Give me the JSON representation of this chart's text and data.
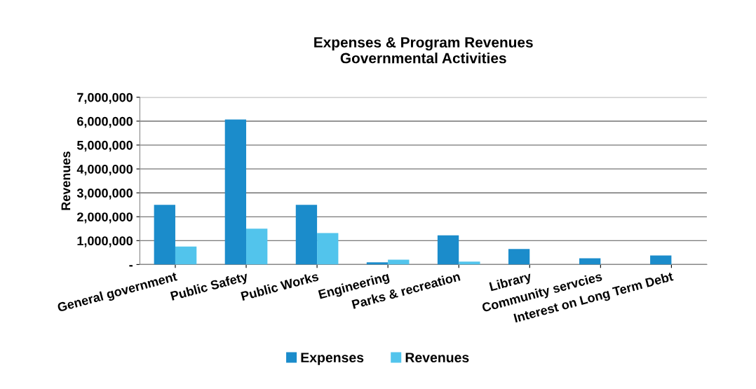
{
  "chart_data": {
    "type": "bar",
    "title": "Expenses & Program Revenues\nGovernmental Activities",
    "ylabel": "Revenues",
    "categories": [
      "General government",
      "Public Safety",
      "Public Works",
      "Engineering",
      "Parks & recreation",
      "Library",
      "Community servcies",
      "Interest on Long Term Debt"
    ],
    "series": [
      {
        "name": "Expenses",
        "color": "#1b8ccb",
        "values": [
          2500000,
          6070000,
          2500000,
          90000,
          1220000,
          650000,
          260000,
          380000
        ]
      },
      {
        "name": "Revenues",
        "color": "#52c4ec",
        "values": [
          750000,
          1500000,
          1320000,
          200000,
          120000,
          null,
          0,
          0
        ]
      }
    ],
    "ylim": [
      0,
      7000000
    ],
    "yticks": [
      {
        "value": 0,
        "label": "-"
      },
      {
        "value": 1000000,
        "label": "1,000,000"
      },
      {
        "value": 2000000,
        "label": "2,000,000"
      },
      {
        "value": 3000000,
        "label": "3,000,000"
      },
      {
        "value": 4000000,
        "label": "4,000,000"
      },
      {
        "value": 5000000,
        "label": "5,000,000"
      },
      {
        "value": 6000000,
        "label": "6,000,000"
      },
      {
        "value": 7000000,
        "label": "7,000,000"
      }
    ],
    "grid": "y",
    "legend": "bottom"
  }
}
